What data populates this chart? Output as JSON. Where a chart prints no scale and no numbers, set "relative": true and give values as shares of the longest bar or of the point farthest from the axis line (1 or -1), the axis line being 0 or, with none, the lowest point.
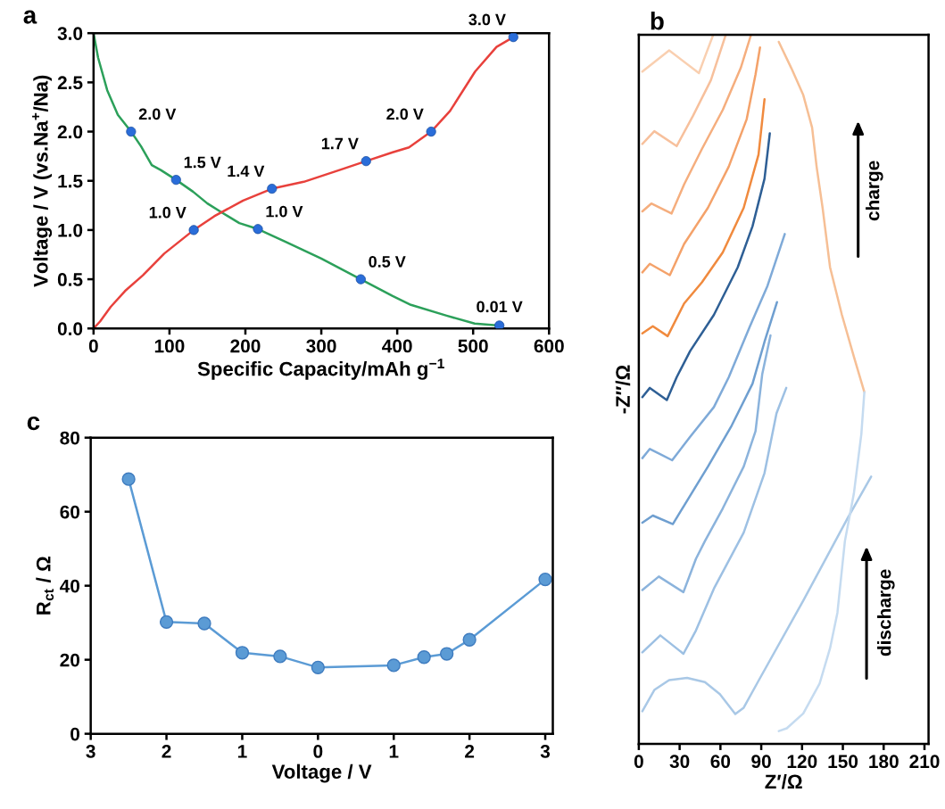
{
  "chart_data": [
    {
      "type": "line",
      "title": "a",
      "xlabel": "Specific Capacity/mAh g$^{−1}$",
      "ylabel": "Voltage / V (vs.Na$^{+}$/Na)",
      "xlim": [
        0,
        600
      ],
      "xticks": [
        0,
        100,
        200,
        300,
        400,
        500,
        600
      ],
      "ylim": [
        0,
        3.0
      ],
      "yticks": [
        {
          "value": 0,
          "label": "0.0"
        },
        {
          "value": 0.5,
          "label": "0.5"
        },
        {
          "value": 1.0,
          "label": "1.0"
        },
        {
          "value": 1.5,
          "label": "1.5"
        },
        {
          "value": 2.0,
          "label": "2.0"
        },
        {
          "value": 2.5,
          "label": "2.5"
        },
        {
          "value": 3.0,
          "label": "3.0"
        }
      ],
      "marker": "none",
      "line_style": "solid",
      "series": [
        {
          "color": "#2ca05a",
          "x": [
            0,
            6,
            18,
            32,
            49.4,
            62.6,
            76.7,
            88.5,
            108.7,
            131,
            150,
            168.5,
            192,
            216.5,
            253,
            300,
            352,
            394,
            418,
            465,
            502,
            534.6
          ],
          "values": [
            3.0,
            2.75,
            2.42,
            2.17,
            2.0,
            1.85,
            1.66,
            1.61,
            1.51,
            1.39,
            1.27,
            1.18,
            1.07,
            1.01,
            0.88,
            0.71,
            0.5,
            0.33,
            0.24,
            0.13,
            0.05,
            0.03
          ]
        },
        {
          "color": "#e8413c",
          "x": [
            0,
            8.5,
            22.6,
            41.4,
            65,
            93,
            132,
            159,
            197,
            235,
            277,
            324,
            359,
            394,
            415.5,
            444.7,
            469.6,
            502.6,
            530.8,
            553
          ],
          "values": [
            0,
            0.07,
            0.22,
            0.38,
            0.54,
            0.76,
            1.0,
            1.14,
            1.3,
            1.42,
            1.49,
            1.61,
            1.7,
            1.79,
            1.84,
            2.0,
            2.21,
            2.61,
            2.86,
            2.96
          ]
        },
        {
          "type": "scatter",
          "color": "#2a6dd9",
          "marker": "circle",
          "x": [
            49.4,
            108.7,
            216.5,
            352,
            534.6
          ],
          "values": [
            2.0,
            1.51,
            1.01,
            0.5,
            0.03
          ]
        },
        {
          "type": "scatter",
          "color": "#2a6dd9",
          "marker": "circle",
          "x": [
            132,
            235,
            359,
            444.7,
            553
          ],
          "values": [
            1.0,
            1.42,
            1.7,
            2.0,
            2.96
          ]
        }
      ],
      "annotations": [
        {
          "text": "2.0 V",
          "x": 49.4,
          "y": 2.0
        },
        {
          "text": "1.5 V",
          "x": 108.7,
          "y": 1.51
        },
        {
          "text": "1.0 V",
          "x": 216.5,
          "y": 1.01
        },
        {
          "text": "0.5 V",
          "x": 352,
          "y": 0.5
        },
        {
          "text": "0.01 V",
          "x": 534.6,
          "y": 0.03
        },
        {
          "text": "1.0 V",
          "x": 132,
          "y": 1.0
        },
        {
          "text": "1.4 V",
          "x": 235,
          "y": 1.42
        },
        {
          "text": "1.7 V",
          "x": 359,
          "y": 1.7
        },
        {
          "text": "2.0 V",
          "x": 444.7,
          "y": 2.0
        },
        {
          "text": "3.0 V",
          "x": 553,
          "y": 2.96
        }
      ]
    },
    {
      "type": "line",
      "title": "b",
      "xlabel": "Z′/Ω",
      "ylabel": "-Z″/Ω",
      "relative": true,
      "xlim": [
        0,
        213
      ],
      "xticks": [
        0,
        30,
        60,
        90,
        120,
        150,
        180,
        210
      ],
      "tick_labels": "x",
      "marker": "none",
      "line_style": "solid",
      "annotations": [
        "charge",
        "discharge"
      ],
      "series": [
        {
          "color": "#a9c8e6",
          "x": [
            2.6,
            11.4,
            22.3,
            35.5,
            48.6,
            59.6,
            70.9,
            77.1,
            88.0,
            120.9,
            153.7,
            170.8
          ],
          "values": [
            0.046,
            0.076,
            0.09,
            0.093,
            0.087,
            0.07,
            0.042,
            0.051,
            0.089,
            0.202,
            0.319,
            0.377
          ]
        },
        {
          "color": "#9dc0e3",
          "x": [
            2.6,
            15.8,
            32.8,
            42.0,
            55.2,
            77.1,
            92.4,
            101.2,
            108.4
          ],
          "values": [
            0.129,
            0.153,
            0.127,
            0.16,
            0.219,
            0.298,
            0.382,
            0.466,
            0.502
          ]
        },
        {
          "color": "#8bb3dc",
          "x": [
            2.6,
            14.7,
            32.8,
            42.0,
            48.6,
            61.7,
            77.1,
            85.8,
            90.7,
            96.8
          ],
          "values": [
            0.217,
            0.236,
            0.214,
            0.261,
            0.286,
            0.332,
            0.391,
            0.441,
            0.521,
            0.576
          ]
        },
        {
          "color": "#6f9fd0",
          "x": [
            2.6,
            10.3,
            25.0,
            33.3,
            50.8,
            68.3,
            83.6,
            92.4,
            101.6
          ],
          "values": [
            0.312,
            0.322,
            0.31,
            0.336,
            0.391,
            0.449,
            0.508,
            0.567,
            0.623
          ]
        },
        {
          "color": "#7faad8",
          "x": [
            2.6,
            8.1,
            24.5,
            37.7,
            55.2,
            66.1,
            81.5,
            94.6,
            107.3
          ],
          "values": [
            0.403,
            0.416,
            0.4,
            0.433,
            0.475,
            0.517,
            0.588,
            0.646,
            0.719
          ]
        },
        {
          "color": "#2e5f95",
          "x": [
            2.6,
            8.1,
            20.6,
            27.8,
            37.7,
            55.2,
            72.7,
            83.6,
            92.4,
            96.3
          ],
          "values": [
            0.489,
            0.502,
            0.485,
            0.517,
            0.554,
            0.605,
            0.672,
            0.73,
            0.797,
            0.861
          ]
        },
        {
          "color": "#f08a3e",
          "x": [
            2.6,
            10.3,
            21.2,
            33.3,
            46.4,
            61.7,
            77.1,
            88.0,
            92.4
          ],
          "values": [
            0.579,
            0.589,
            0.575,
            0.621,
            0.651,
            0.693,
            0.756,
            0.831,
            0.909
          ]
        },
        {
          "color": "#f4a26a",
          "x": [
            2.6,
            8.1,
            22.8,
            33.3,
            50.8,
            66.1,
            79.3,
            85.8,
            89.1
          ],
          "values": [
            0.665,
            0.677,
            0.661,
            0.705,
            0.756,
            0.814,
            0.881,
            0.944,
            0.982
          ]
        },
        {
          "color": "#f5ae7e",
          "x": [
            2.6,
            9.2,
            24.1,
            33.3,
            46.4,
            61.7,
            74.9,
            82.5
          ],
          "values": [
            0.751,
            0.762,
            0.748,
            0.789,
            0.839,
            0.894,
            0.953,
            1.0
          ]
        },
        {
          "color": "#f7c09c",
          "x": [
            2.6,
            11.4,
            27.8,
            39.9,
            53.0,
            63.9
          ],
          "values": [
            0.846,
            0.864,
            0.843,
            0.886,
            0.936,
            1.0
          ]
        },
        {
          "color": "#f9cfb0",
          "x": [
            2.6,
            22.3,
            44.2,
            48.6,
            54.7
          ],
          "values": [
            0.948,
            0.978,
            0.946,
            0.969,
            1.0
          ]
        },
        {
          "color": "#f6bf95",
          "x": [
            102.9,
            112.1,
            120.9,
            127.4,
            130.7,
            135.1,
            140.6,
            149.3,
            158.1,
            165.8
          ],
          "values": [
            0.99,
            0.953,
            0.915,
            0.869,
            0.814,
            0.756,
            0.672,
            0.605,
            0.546,
            0.496
          ]
        },
        {
          "color": "#c5dbf0",
          "x": [
            165.8,
            163.6,
            158.1,
            151.5,
            146.0,
            140.6,
            132.9,
            120.9,
            108.8,
            102.9
          ],
          "values": [
            0.496,
            0.437,
            0.353,
            0.286,
            0.185,
            0.135,
            0.085,
            0.043,
            0.022,
            0.018
          ]
        }
      ]
    },
    {
      "type": "line",
      "title": "c",
      "xlabel": "Voltage / V",
      "ylabel": "R$_{ct}$ / Ω",
      "xlim": [
        -3,
        3.1
      ],
      "xticks": [
        {
          "value": -3,
          "label": "3"
        },
        {
          "value": -2,
          "label": "2"
        },
        {
          "value": -1,
          "label": "1"
        },
        {
          "value": 0,
          "label": "0"
        },
        {
          "value": 1,
          "label": "1"
        },
        {
          "value": 2,
          "label": "2"
        },
        {
          "value": 3,
          "label": "3"
        }
      ],
      "ylim": [
        0,
        80
      ],
      "yticks": [
        0,
        20,
        40,
        60,
        80
      ],
      "marker": "circle",
      "line_style": "solid",
      "series": [
        {
          "color": "#5b9bd5",
          "x": [
            -2.5,
            -2,
            -1.5,
            -1,
            -0.5,
            0,
            1,
            1.4,
            1.7,
            2,
            3
          ],
          "values": [
            68.8,
            30.2,
            29.8,
            21.9,
            20.9,
            17.9,
            18.5,
            20.7,
            21.6,
            25.4,
            41.7
          ]
        }
      ]
    }
  ]
}
